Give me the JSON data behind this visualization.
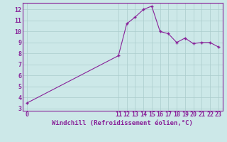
{
  "x": [
    0,
    11,
    12,
    13,
    14,
    15,
    16,
    17,
    18,
    19,
    20,
    21,
    22,
    23
  ],
  "y": [
    3.5,
    7.8,
    10.7,
    11.3,
    12.0,
    12.3,
    10.0,
    9.8,
    9.0,
    9.4,
    8.9,
    9.0,
    9.0,
    8.6
  ],
  "line_color": "#882299",
  "marker": "+",
  "bg_color": "#cce8e8",
  "grid_color": "#aacccc",
  "xlabel": "Windchill (Refroidissement éolien,°C)",
  "xlabel_color": "#882299",
  "tick_color": "#882299",
  "axis_color": "#882299",
  "ylim": [
    2.8,
    12.6
  ],
  "xlim": [
    -0.5,
    23.5
  ],
  "yticks": [
    3,
    4,
    5,
    6,
    7,
    8,
    9,
    10,
    11,
    12
  ],
  "xticks": [
    0,
    11,
    12,
    13,
    14,
    15,
    16,
    17,
    18,
    19,
    20,
    21,
    22,
    23
  ],
  "tick_fontsize": 6,
  "xlabel_fontsize": 6.5
}
